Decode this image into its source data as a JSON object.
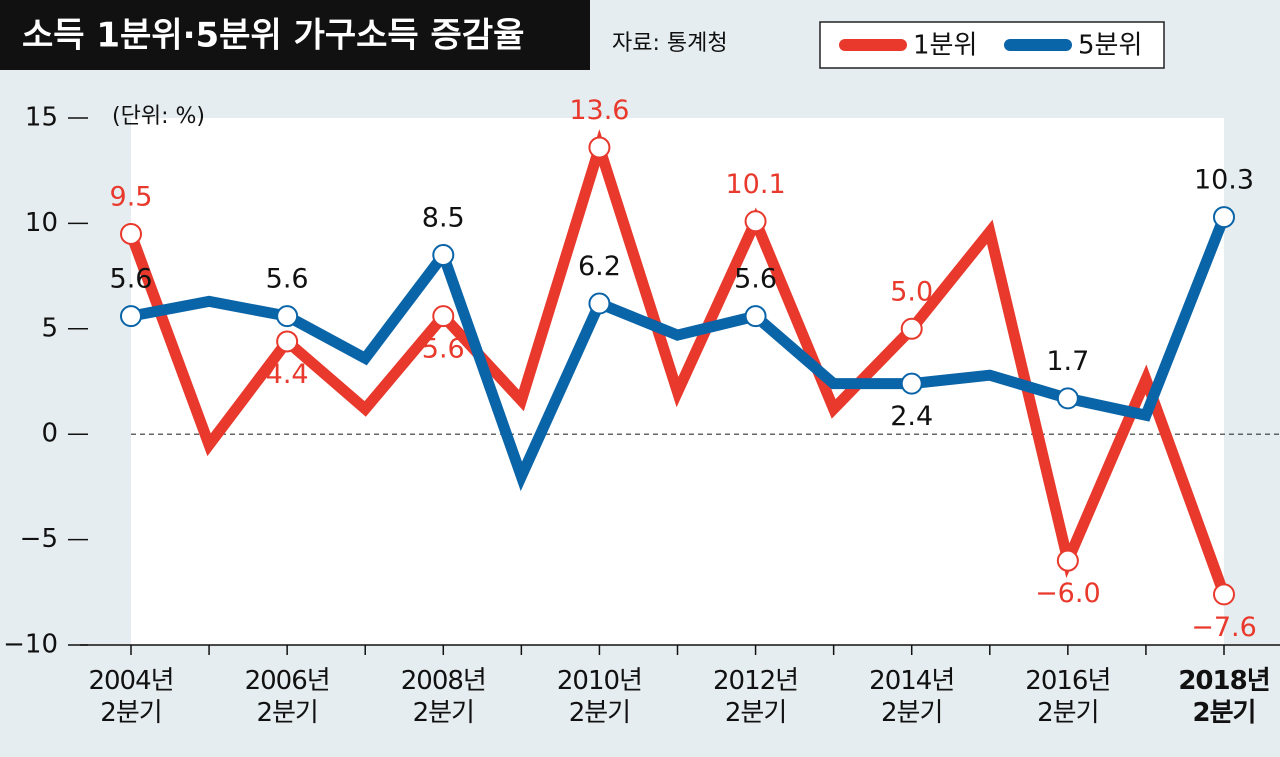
{
  "chart_data": {
    "type": "line",
    "title": "소득 1분위·5분위 가구소득 증감율",
    "source": "자료: 통계청",
    "unit_label": "(단위: %)",
    "categories": [
      "2004년\n2분기",
      null,
      "2006년\n2분기",
      null,
      "2008년\n2분기",
      null,
      "2010년\n2분기",
      null,
      "2012년\n2분기",
      null,
      "2014년\n2분기",
      null,
      "2016년\n2분기",
      null,
      "2018년\n2분기"
    ],
    "series": [
      {
        "name": "1분위",
        "color": "#e8392c",
        "values": [
          9.5,
          -0.5,
          4.4,
          1.2,
          5.6,
          1.6,
          13.6,
          2.0,
          10.1,
          1.2,
          5.0,
          9.6,
          -6.0,
          2.6,
          -7.6
        ],
        "value_labels": [
          "9.5",
          null,
          "4.4",
          null,
          "5.6",
          null,
          "13.6",
          null,
          "10.1",
          null,
          "5.0",
          null,
          "−6.0",
          null,
          "−7.6"
        ]
      },
      {
        "name": "5분위",
        "color": "#0a64a8",
        "values": [
          5.6,
          6.3,
          5.6,
          3.6,
          8.5,
          -2.0,
          6.2,
          4.7,
          5.6,
          2.4,
          2.4,
          2.8,
          1.7,
          0.9,
          10.3
        ],
        "value_labels": [
          "5.6",
          null,
          "5.6",
          null,
          "8.5",
          null,
          "6.2",
          null,
          "5.6",
          null,
          "2.4",
          null,
          "1.7",
          null,
          "10.3"
        ]
      }
    ],
    "ylim": [
      -10,
      15
    ],
    "yticks": [
      15,
      10,
      5,
      0,
      {
        "value": -5,
        "label": "−5"
      },
      {
        "value": -10,
        "label": "−10"
      }
    ],
    "legend": "top-right"
  }
}
